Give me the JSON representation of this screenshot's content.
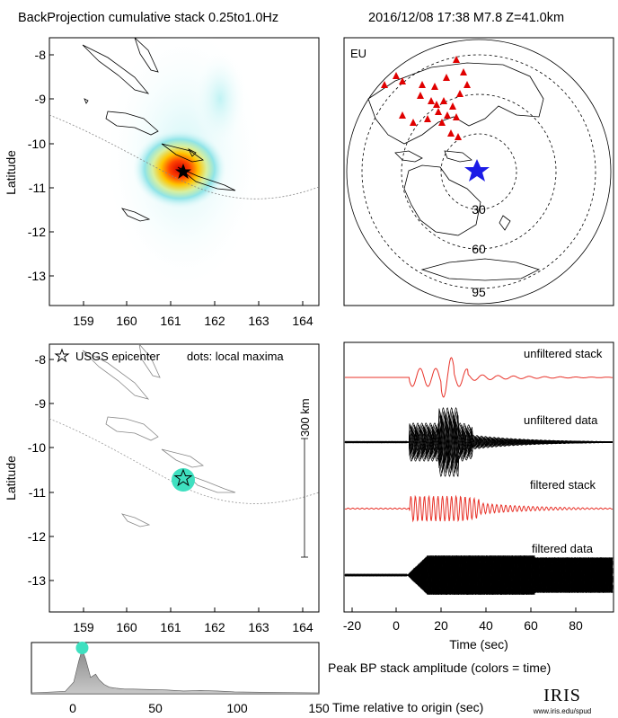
{
  "header": {
    "title": "BackProjection cumulative stack 0.25to1.0Hz",
    "event": "2016/12/08 17:38   M7.8   Z=41.0km"
  },
  "map_top": {
    "ylabel": "Latitude",
    "x_ticks": [
      "159",
      "160",
      "161",
      "162",
      "163",
      "164"
    ],
    "y_ticks": [
      "-8",
      "-9",
      "-10",
      "-11",
      "-12",
      "-13"
    ]
  },
  "globe": {
    "region": "EU",
    "ring_labels": [
      "30",
      "60",
      "95"
    ]
  },
  "map_bottom": {
    "ylabel": "Latitude",
    "legend_epicenter": "USGS epicenter",
    "legend_dots": "dots: local maxima",
    "scalebar": "300 km",
    "x_ticks": [
      "159",
      "160",
      "161",
      "162",
      "163",
      "164"
    ],
    "y_ticks": [
      "-8",
      "-9",
      "-10",
      "-11",
      "-12",
      "-13"
    ]
  },
  "waveforms": {
    "labels": [
      "unfiltered stack",
      "unfiltered data",
      "filtered stack",
      "filtered data"
    ],
    "x_ticks": [
      "-20",
      "0",
      "20",
      "40",
      "60",
      "80"
    ],
    "xlabel": "Time (sec)"
  },
  "amplitude": {
    "x_ticks": [
      "0",
      "50",
      "100",
      "150"
    ],
    "caption": "Peak BP stack amplitude (colors = time)",
    "xlabel": "Time relative to origin (sec)"
  },
  "logo": {
    "name": "IRIS",
    "url": "www.iris.edu/spud"
  },
  "colors": {
    "stack_red": "#e8332a",
    "marker_cyan": "#3fe0c0",
    "star_blue": "#1c1ce6",
    "station_red": "#e00000"
  },
  "chart_data": [
    {
      "type": "heatmap",
      "ylabel": "Latitude",
      "xlim": [
        158.3,
        164.4
      ],
      "ylim": [
        -13.6,
        -7.6
      ],
      "peak": {
        "lon": 161.3,
        "lat": -10.65
      },
      "epicenter": {
        "lon": 161.3,
        "lat": -10.65
      }
    },
    {
      "type": "scatter",
      "xlim": [
        158.3,
        164.4
      ],
      "ylim": [
        -13.6,
        -7.6
      ],
      "local_maxima": [
        {
          "lon": 161.3,
          "lat": -10.75
        }
      ],
      "epicenter": {
        "lon": 161.3,
        "lat": -10.65
      }
    },
    {
      "type": "line",
      "xlabel": "Time (sec)",
      "xlim": [
        -25,
        95
      ],
      "series": [
        {
          "name": "unfiltered stack"
        },
        {
          "name": "unfiltered data"
        },
        {
          "name": "filtered stack"
        },
        {
          "name": "filtered data"
        }
      ]
    },
    {
      "type": "area",
      "xlabel": "Time relative to origin (sec)",
      "xlim": [
        -20,
        150
      ],
      "x": [
        -20,
        0,
        5,
        8,
        10,
        12,
        15,
        18,
        20,
        23,
        26,
        30,
        35,
        40,
        50,
        60,
        70,
        80,
        90,
        100,
        120,
        150
      ],
      "y": [
        0.02,
        0.05,
        0.25,
        0.7,
        0.95,
        0.75,
        0.35,
        0.42,
        0.3,
        0.2,
        0.14,
        0.12,
        0.1,
        0.1,
        0.09,
        0.08,
        0.06,
        0.07,
        0.06,
        0.04,
        0.03,
        0.02
      ],
      "peak_time": 10
    }
  ]
}
